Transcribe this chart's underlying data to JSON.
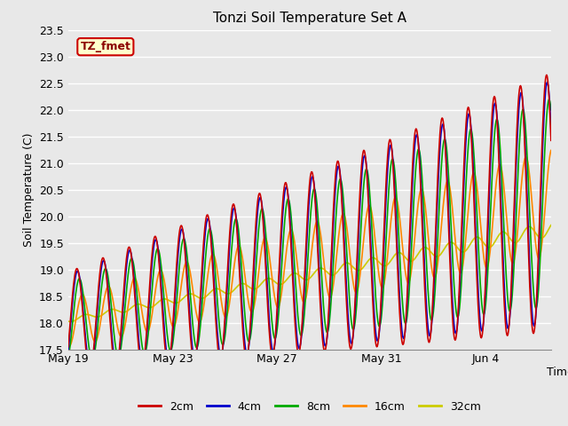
{
  "title": "Tonzi Soil Temperature Set A",
  "ylabel": "Soil Temperature (C)",
  "xlabel": "Time",
  "ylim": [
    17.5,
    23.5
  ],
  "yticks": [
    17.5,
    18.0,
    18.5,
    19.0,
    19.5,
    20.0,
    20.5,
    21.0,
    21.5,
    22.0,
    22.5,
    23.0,
    23.5
  ],
  "n_days": 18.5,
  "colors": {
    "2cm": "#cc0000",
    "4cm": "#0000cc",
    "8cm": "#00aa00",
    "16cm": "#ff8800",
    "32cm": "#cccc00"
  },
  "label_text": "TZ_fmet",
  "label_bg": "#ffffcc",
  "label_border": "#cc0000",
  "plot_bg": "#e8e8e8",
  "fig_bg": "#e8e8e8",
  "xtick_labels": [
    "May 19",
    "May 23",
    "May 27",
    "May 31",
    "Jun 4"
  ],
  "xtick_days": [
    0,
    4,
    8,
    12,
    16
  ],
  "title_fontsize": 11,
  "axis_fontsize": 9,
  "tick_fontsize": 9
}
